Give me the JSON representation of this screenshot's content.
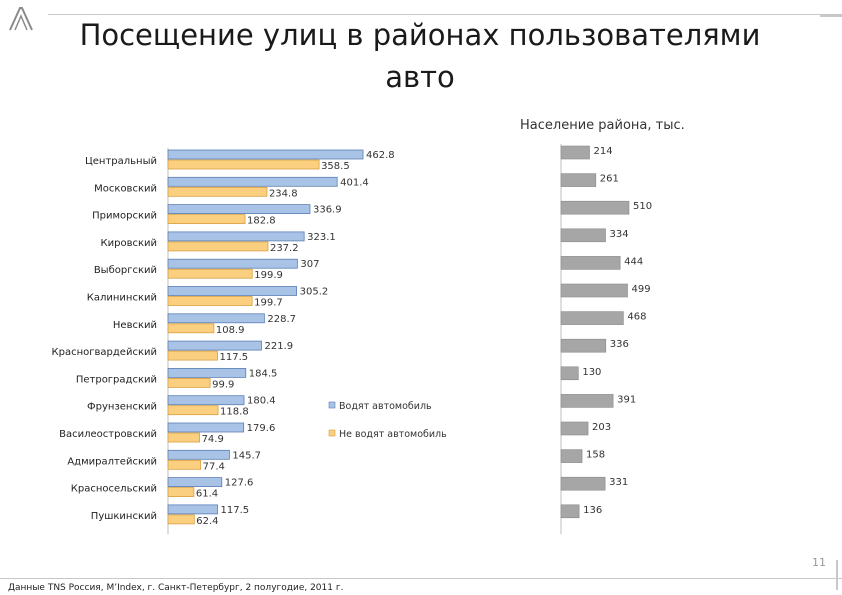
{
  "slide": {
    "title_line1": "Посещение улиц в районах пользователями",
    "title_line2": "авто",
    "page_number": "11",
    "source": "Данные TNS Россия, M’Index, г. Санкт-Петербург, 2 полугодие, 2011 г."
  },
  "chart_data": [
    {
      "type": "bar",
      "orientation": "horizontal",
      "categories": [
        "Центральный",
        "Московский",
        "Приморский",
        "Кировский",
        "Выборгский",
        "Калининский",
        "Невский",
        "Красногвардейский",
        "Петроградский",
        "Фрунзенский",
        "Василеостровский",
        "Адмиралтейский",
        "Красносельский",
        "Пушкинский"
      ],
      "series": [
        {
          "name": "Водят автомобиль",
          "color": "#a8c3e6",
          "values": [
            462.8,
            401.4,
            336.9,
            323.1,
            307,
            305.2,
            228.7,
            221.9,
            184.5,
            180.4,
            179.6,
            145.7,
            127.6,
            117.5
          ]
        },
        {
          "name": "Не водят автомобиль",
          "color": "#fbcf80",
          "values": [
            358.5,
            234.8,
            182.8,
            237.2,
            199.9,
            199.7,
            108.9,
            117.5,
            99.9,
            118.8,
            74.9,
            77.4,
            61.4,
            62.4
          ]
        }
      ],
      "value_labels": {
        "drive": [
          "462.8",
          "401.4",
          "336.9",
          "323.1",
          "307",
          "305.2",
          "228.7",
          "221.9",
          "184.5",
          "180.4",
          "179.6",
          "145.7",
          "127.6",
          "117.5"
        ],
        "nodrive": [
          "358.5",
          "234.8",
          "182.8",
          "237.2",
          "199.9",
          "199.7",
          "108.9",
          "117.5",
          "99.9",
          "118.8",
          "74.9",
          "77.4",
          "61.4",
          "62.4"
        ]
      },
      "legend_position": "right-middle",
      "grid": false
    },
    {
      "type": "bar",
      "orientation": "horizontal",
      "title": "Население района, тыс.",
      "categories": [
        "Центральный",
        "Московский",
        "Приморский",
        "Кировский",
        "Выборгский",
        "Калининский",
        "Невский",
        "Красногвардейский",
        "Петроградский",
        "Фрунзенский",
        "Василеостровский",
        "Адмиралтейский",
        "Красносельский",
        "Пушкинский"
      ],
      "series": [
        {
          "color": "#a6a6a6",
          "values": [
            214,
            261,
            510,
            334,
            444,
            499,
            468,
            336,
            130,
            391,
            203,
            158,
            331,
            136
          ]
        }
      ],
      "value_labels": [
        "214",
        "261",
        "510",
        "334",
        "444",
        "499",
        "468",
        "336",
        "130",
        "391",
        "203",
        "158",
        "331",
        "136"
      ],
      "grid": false
    }
  ]
}
